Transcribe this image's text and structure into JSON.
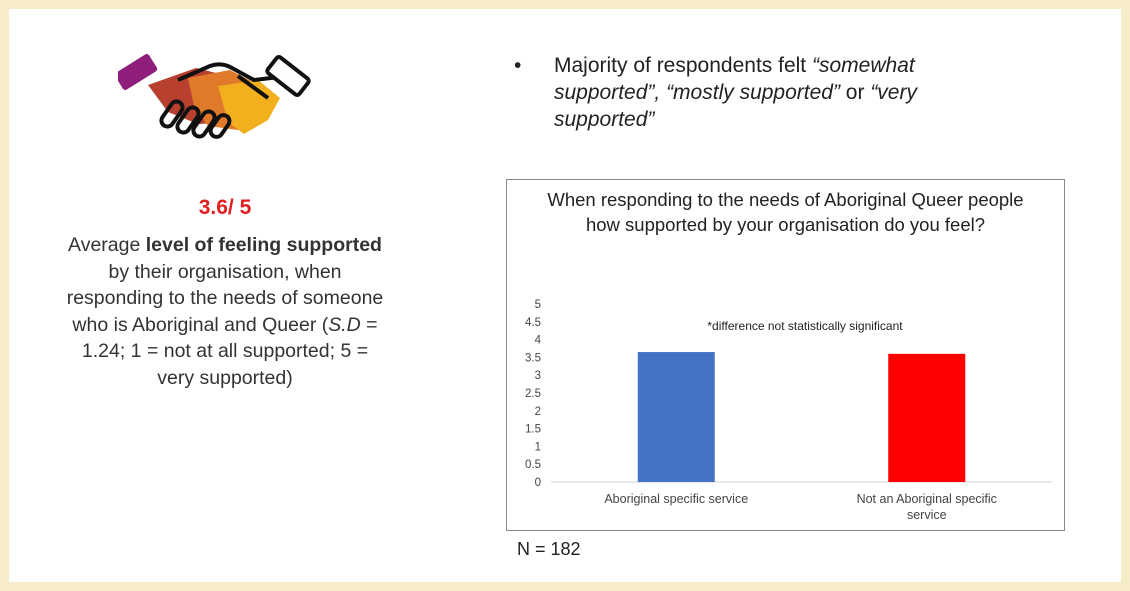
{
  "stat": {
    "value": "3.6/ 5",
    "desc_pre": "Average ",
    "desc_bold": "level of feeling supported",
    "desc_mid": " by their organisation, when responding to the needs of someone who is Aboriginal and Queer (",
    "sd_label": "S.D",
    "desc_post": " = 1.24; 1 = not at all supported; 5 = very supported)"
  },
  "bullet": {
    "symbol": "•",
    "text_pre": "Majority of respondents felt ",
    "q1": "“somewhat supported”, “mostly supported”",
    "text_mid": " or ",
    "q2": "“very supported”"
  },
  "n_label": "N = 182",
  "icons": {
    "handshake": "handshake-icon"
  },
  "chart_data": {
    "type": "bar",
    "title": "When responding to the needs of Aboriginal Queer people how supported by your organisation do you feel?",
    "annotation": "*difference not statistically significant",
    "categories": [
      "Aboriginal specific service",
      "Not an Aboriginal specific service"
    ],
    "category_lines": [
      [
        "Aboriginal specific service"
      ],
      [
        "Not an Aboriginal specific",
        "service"
      ]
    ],
    "values": [
      3.65,
      3.6
    ],
    "colors": [
      "#4472c4",
      "#ff0000"
    ],
    "ylim": [
      0,
      5
    ],
    "yticks": [
      "0",
      "0.5",
      "1",
      "1.5",
      "2",
      "2.5",
      "3",
      "3.5",
      "4",
      "4.5",
      "5"
    ],
    "xlabel": "",
    "ylabel": "",
    "grid": false,
    "legend": "none"
  }
}
